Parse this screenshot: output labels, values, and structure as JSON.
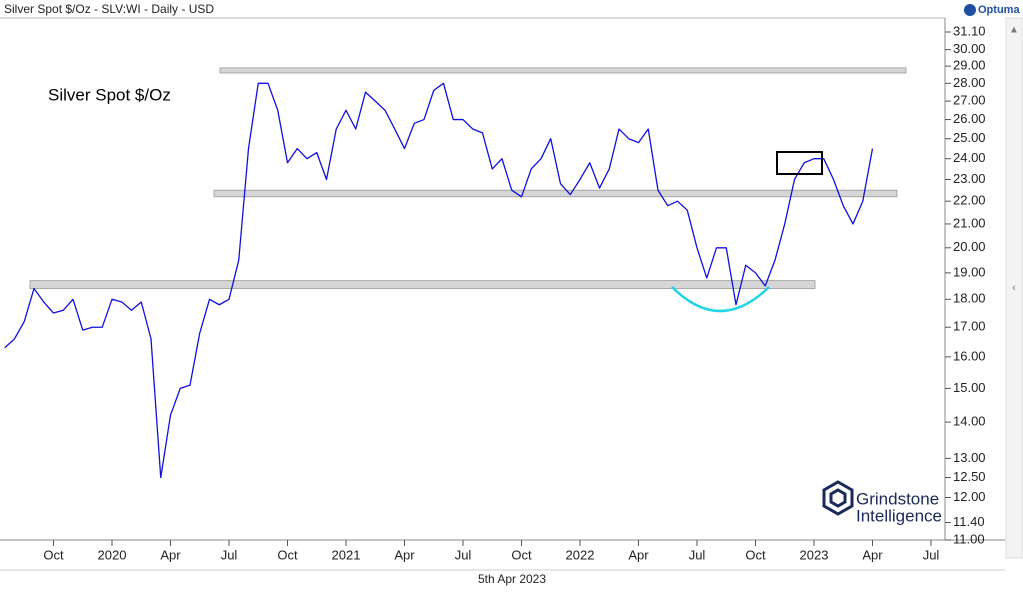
{
  "chart_data": {
    "type": "line",
    "title": "Silver Spot $/Oz - SLV:WI - Daily - USD",
    "date_label": "5th Apr 2023",
    "brand": "Optuma",
    "watermark": [
      "Grindstone",
      "Intelligence"
    ],
    "log_scale": true,
    "categories": [
      null,
      null,
      null,
      null,
      null,
      "Oct",
      null,
      null,
      null,
      null,
      null,
      "2020",
      null,
      null,
      null,
      null,
      null,
      "Apr",
      null,
      null,
      null,
      null,
      null,
      "Jul",
      null,
      null,
      null,
      null,
      null,
      "Oct",
      null,
      null,
      null,
      null,
      null,
      "2021",
      null,
      null,
      null,
      null,
      null,
      "Apr",
      null,
      null,
      null,
      null,
      null,
      "Jul",
      null,
      null,
      null,
      null,
      null,
      "Oct",
      null,
      null,
      null,
      null,
      null,
      "2022",
      null,
      null,
      null,
      null,
      null,
      "Apr",
      null,
      null,
      null,
      null,
      null,
      "Jul",
      null,
      null,
      null,
      null,
      null,
      "Oct",
      null,
      null,
      null,
      null,
      null,
      "2023",
      null,
      null,
      null,
      null,
      null,
      "Apr",
      null,
      null,
      null,
      null,
      null,
      "Jul"
    ],
    "series": [
      {
        "name": "Silver Spot $/Oz",
        "color": "#1010e0",
        "values": [
          16.3,
          16.6,
          17.2,
          18.4,
          17.9,
          17.5,
          17.6,
          18.0,
          16.9,
          17.0,
          17.0,
          18.0,
          17.9,
          17.6,
          17.9,
          16.6,
          12.5,
          14.2,
          15.0,
          15.1,
          16.8,
          18.0,
          17.8,
          18.0,
          19.5,
          24.5,
          28.0,
          28.0,
          26.5,
          23.8,
          24.5,
          24.0,
          24.3,
          23.0,
          25.5,
          26.5,
          25.5,
          27.5,
          27.0,
          26.5,
          25.5,
          24.5,
          25.8,
          26.0,
          27.6,
          28.0,
          26.0,
          26.0,
          25.5,
          25.3,
          23.5,
          24.0,
          22.5,
          22.2,
          23.5,
          24.0,
          25.0,
          22.8,
          22.3,
          23.0,
          23.8,
          22.6,
          23.5,
          25.5,
          25.0,
          24.8,
          25.5,
          22.5,
          21.8,
          22.0,
          21.6,
          20.0,
          18.8,
          20.0,
          20.0,
          17.8,
          19.3,
          19.0,
          18.5,
          19.5,
          21.0,
          23.0,
          23.8,
          24.0,
          24.0,
          23.0,
          21.8,
          21.0,
          22.0,
          24.5,
          null,
          null,
          null,
          null,
          null,
          null
        ]
      }
    ],
    "bands": [
      [
        28.6,
        28.9
      ],
      [
        22.2,
        22.5
      ],
      [
        18.4,
        18.7
      ]
    ],
    "ylim": [
      11,
      31.1
    ],
    "yticks": [
      {
        "value": 31.1,
        "label": "31.10"
      },
      {
        "value": 30,
        "label": "30.00"
      },
      {
        "value": 29,
        "label": "29.00"
      },
      {
        "value": 28,
        "label": "28.00"
      },
      {
        "value": 27,
        "label": "27.00"
      },
      {
        "value": 26,
        "label": "26.00"
      },
      {
        "value": 25,
        "label": "25.00"
      },
      {
        "value": 24,
        "label": "24.00"
      },
      {
        "value": 23,
        "label": "23.00"
      },
      {
        "value": 22,
        "label": "22.00"
      },
      {
        "value": 21,
        "label": "21.00"
      },
      {
        "value": 20,
        "label": "20.00"
      },
      {
        "value": 19,
        "label": "19.00"
      },
      {
        "value": 18,
        "label": "18.00"
      },
      {
        "value": 17,
        "label": "17.00"
      },
      {
        "value": 16,
        "label": "16.00"
      },
      {
        "value": 15,
        "label": "15.00"
      },
      {
        "value": 14,
        "label": "14.00"
      },
      {
        "value": 13,
        "label": "13.00"
      },
      {
        "value": 12.5,
        "label": "12.50"
      },
      {
        "value": 12,
        "label": "12.00"
      },
      {
        "value": 11.4,
        "label": "11.40"
      },
      {
        "value": 11,
        "label": "11.00"
      }
    ]
  }
}
